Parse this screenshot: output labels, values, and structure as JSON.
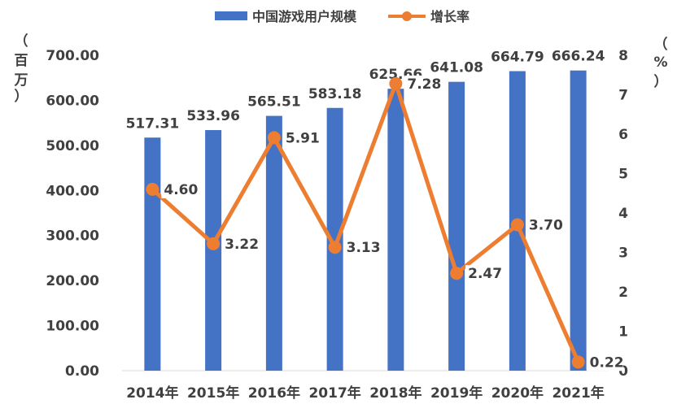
{
  "chart_data": {
    "type": "bar+line",
    "categories": [
      "2014年",
      "2015年",
      "2016年",
      "2017年",
      "2018年",
      "2019年",
      "2020年",
      "2021年"
    ],
    "series": [
      {
        "name": "中国游戏用户规模",
        "type": "bar",
        "axis": "left",
        "values": [
          517.31,
          533.96,
          565.51,
          583.18,
          625.66,
          641.08,
          664.79,
          666.24
        ],
        "labels": [
          "517.31",
          "533.96",
          "565.51",
          "583.18",
          "625.66",
          "641.08",
          "664.79",
          "666.24"
        ],
        "color": "#4472C4"
      },
      {
        "name": "增长率",
        "type": "line",
        "axis": "right",
        "values": [
          4.6,
          3.22,
          5.91,
          3.13,
          7.28,
          2.47,
          3.7,
          0.22
        ],
        "labels": [
          "4.60",
          "3.22",
          "5.91",
          "3.13",
          "7.28",
          "2.47",
          "3.70",
          "0.22"
        ],
        "color": "#ED7D31"
      }
    ],
    "y_left": {
      "unit_chars": [
        "（",
        "百",
        "万",
        "）"
      ],
      "ylim": [
        0,
        700
      ],
      "ticks": [
        "0.00",
        "100.00",
        "200.00",
        "300.00",
        "400.00",
        "500.00",
        "600.00",
        "700.00"
      ]
    },
    "y_right": {
      "unit_chars": [
        "（",
        "%",
        "）"
      ],
      "ylim": [
        0,
        8
      ],
      "ticks": [
        "0",
        "1",
        "2",
        "3",
        "4",
        "5",
        "6",
        "7",
        "8"
      ]
    },
    "grid": false,
    "legend_position": "top-center"
  }
}
